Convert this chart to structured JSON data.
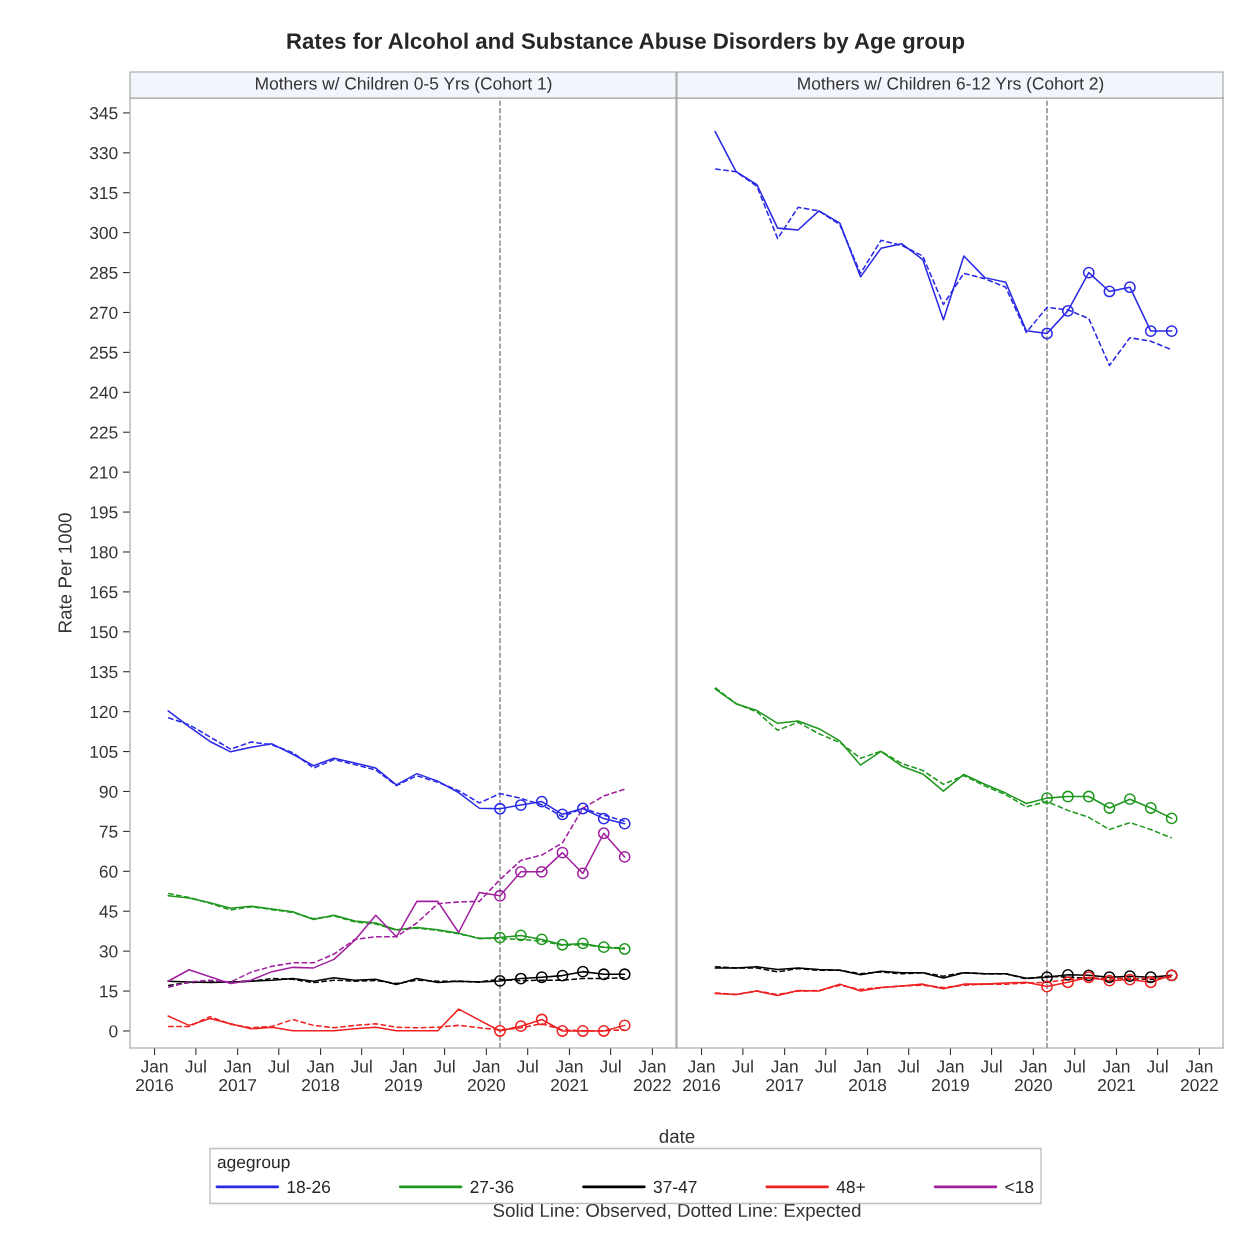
{
  "chart_data": [
    {
      "type": "line",
      "title": "Rates for Alcohol and Substance Abuse Disorders by Age group",
      "subtitle": "Mothers w/ Children 0-5 Yrs (Cohort 1)",
      "xlabel": "date",
      "ylabel": "Rate Per 1000",
      "legend_title": "agegroup",
      "legend": "bottom",
      "annotations": [
        "Solid Line: Observed, Dotted Line: Expected"
      ],
      "x": [
        "2016-03",
        "2016-06",
        "2016-09",
        "2016-12",
        "2017-03",
        "2017-06",
        "2017-09",
        "2017-12",
        "2018-03",
        "2018-06",
        "2018-09",
        "2018-12",
        "2019-03",
        "2019-06",
        "2019-09",
        "2019-12",
        "2020-03",
        "2020-06",
        "2020-09",
        "2020-12",
        "2021-03",
        "2021-06",
        "2021-09"
      ],
      "xlim": [
        "2015-09-15",
        "2022-04-15"
      ],
      "xticks": [
        {
          "value": "2016-01",
          "label": "Jan\n2016"
        },
        {
          "value": "2016-07",
          "label": "Jul"
        },
        {
          "value": "2017-01",
          "label": "Jan\n2017"
        },
        {
          "value": "2017-07",
          "label": "Jul"
        },
        {
          "value": "2018-01",
          "label": "Jan\n2018"
        },
        {
          "value": "2018-07",
          "label": "Jul"
        },
        {
          "value": "2019-01",
          "label": "Jan\n2019"
        },
        {
          "value": "2019-07",
          "label": "Jul"
        },
        {
          "value": "2020-01",
          "label": "Jan\n2020"
        },
        {
          "value": "2020-07",
          "label": "Jul"
        },
        {
          "value": "2021-01",
          "label": "Jan\n2021"
        },
        {
          "value": "2021-07",
          "label": "Jul"
        },
        {
          "value": "2022-01",
          "label": "Jan\n2022"
        }
      ],
      "ylim": [
        -6.4,
        350.6
      ],
      "yticks": [
        0,
        15,
        30,
        45,
        60,
        75,
        90,
        105,
        120,
        135,
        150,
        165,
        180,
        195,
        210,
        225,
        240,
        255,
        270,
        285,
        300,
        315,
        330,
        345
      ],
      "grid": false,
      "ref_lines": [
        {
          "axis": "x",
          "value": "2020-03",
          "color": "#808080",
          "line_style": "dashed"
        }
      ],
      "series": [
        {
          "name": "18-26",
          "color": "#2929e6",
          "line_style": "solid",
          "values": [
            120.3,
            114.4,
            108.8,
            104.9,
            106.6,
            107.9,
            104.0,
            99.7,
            102.5,
            100.7,
            98.8,
            92.5,
            96.7,
            93.9,
            89.6,
            83.7,
            83.5,
            84.9,
            86.2,
            81.4,
            83.6,
            79.8,
            77.9
          ]
        },
        {
          "color": "#2929e6",
          "line_style": "dashed",
          "values": [
            117.7,
            115.1,
            110.5,
            105.9,
            108.6,
            107.5,
            104.6,
            98.8,
            102.0,
            100.1,
            98.1,
            92.2,
            95.9,
            93.5,
            90.3,
            85.7,
            89.2,
            87.4,
            85.0,
            80.5,
            83.7,
            81.1,
            78.8
          ]
        },
        {
          "type": "scatter",
          "color": "#2929e6",
          "marker": "circle",
          "x": [
            "2020-03",
            "2020-06",
            "2020-09",
            "2020-12",
            "2021-03",
            "2021-06",
            "2021-09"
          ],
          "values": [
            83.5,
            84.9,
            86.2,
            81.4,
            83.6,
            79.8,
            77.9
          ]
        },
        {
          "name": "27-36",
          "color": "#1f981f",
          "line_style": "solid",
          "values": [
            50.8,
            50.0,
            48.2,
            46.1,
            46.9,
            45.8,
            44.8,
            41.9,
            43.5,
            41.3,
            40.6,
            38.0,
            38.9,
            38.0,
            36.7,
            34.7,
            35.1,
            35.9,
            34.4,
            32.4,
            32.9,
            31.5,
            30.8
          ]
        },
        {
          "color": "#1f981f",
          "line_style": "dashed",
          "values": [
            51.7,
            50.2,
            48.0,
            45.5,
            46.7,
            45.6,
            44.5,
            42.2,
            43.2,
            41.0,
            40.2,
            37.9,
            38.7,
            37.8,
            36.5,
            34.9,
            34.7,
            34.4,
            33.8,
            32.2,
            32.4,
            31.5,
            31.2
          ]
        },
        {
          "type": "scatter",
          "color": "#1f981f",
          "marker": "circle",
          "x": [
            "2020-03",
            "2020-06",
            "2020-09",
            "2020-12",
            "2021-03",
            "2021-06",
            "2021-09"
          ],
          "values": [
            35.1,
            35.9,
            34.4,
            32.4,
            32.9,
            31.5,
            30.8
          ]
        },
        {
          "name": "37-47",
          "color": "#000000",
          "line_style": "solid",
          "values": [
            18.7,
            18.4,
            18.2,
            18.4,
            18.7,
            19.1,
            19.7,
            18.7,
            20.0,
            19.1,
            19.4,
            17.5,
            19.7,
            18.2,
            18.7,
            18.4,
            18.8,
            19.7,
            20.2,
            20.8,
            22.3,
            21.3,
            21.3
          ]
        },
        {
          "color": "#000000",
          "line_style": "dashed",
          "values": [
            17.1,
            18.2,
            18.4,
            18.4,
            18.7,
            19.7,
            19.4,
            18.2,
            19.1,
            18.7,
            19.0,
            17.8,
            19.1,
            18.7,
            18.7,
            18.4,
            19.4,
            18.9,
            19.1,
            19.1,
            19.7,
            19.7,
            20.0
          ]
        },
        {
          "type": "scatter",
          "color": "#000000",
          "marker": "circle",
          "x": [
            "2020-03",
            "2020-06",
            "2020-09",
            "2020-12",
            "2021-03",
            "2021-06",
            "2021-09"
          ],
          "values": [
            18.8,
            19.7,
            20.2,
            20.8,
            22.3,
            21.3,
            21.3
          ]
        },
        {
          "name": "48+",
          "color": "#ee2020",
          "line_style": "solid",
          "values": [
            5.6,
            2.1,
            4.7,
            2.7,
            0.8,
            1.4,
            0.1,
            0.1,
            0.1,
            0.8,
            1.4,
            0.1,
            0.1,
            0.1,
            8.2,
            4.1,
            0.0,
            1.8,
            4.3,
            0.0,
            0.0,
            0.0,
            2.1
          ]
        },
        {
          "color": "#ee2020",
          "line_style": "dashed",
          "values": [
            1.7,
            1.7,
            5.4,
            2.5,
            1.2,
            1.7,
            4.3,
            2.1,
            1.2,
            2.1,
            2.7,
            1.4,
            1.2,
            1.4,
            2.1,
            1.2,
            0.4,
            1.2,
            2.7,
            0.4,
            0.1,
            0.1,
            0.4
          ]
        },
        {
          "type": "scatter",
          "color": "#ee2020",
          "marker": "circle",
          "x": [
            "2020-03",
            "2020-06",
            "2020-09",
            "2020-12",
            "2021-03",
            "2021-06",
            "2021-09"
          ],
          "values": [
            0.0,
            1.8,
            4.3,
            0.0,
            0.0,
            0.0,
            2.1
          ]
        },
        {
          "name": "<18",
          "color": "#a020a0",
          "line_style": "solid",
          "values": [
            18.7,
            23.0,
            20.4,
            17.8,
            19.1,
            22.3,
            23.9,
            23.7,
            26.9,
            34.1,
            43.5,
            35.4,
            48.7,
            48.7,
            37.0,
            52.0,
            50.8,
            59.8,
            59.8,
            67.0,
            59.2,
            74.3,
            65.4
          ]
        },
        {
          "color": "#a020a0",
          "line_style": "dashed",
          "values": [
            16.4,
            18.4,
            19.1,
            18.4,
            22.1,
            24.3,
            25.6,
            25.6,
            28.9,
            34.4,
            35.4,
            35.4,
            40.6,
            47.8,
            48.5,
            48.7,
            56.9,
            64.1,
            66.1,
            70.7,
            83.7,
            88.3,
            90.9
          ]
        },
        {
          "type": "scatter",
          "color": "#a020a0",
          "marker": "circle",
          "x": [
            "2020-03",
            "2020-06",
            "2020-09",
            "2020-12",
            "2021-03",
            "2021-06",
            "2021-09"
          ],
          "values": [
            50.8,
            59.8,
            59.8,
            67.0,
            59.2,
            74.3,
            65.4
          ]
        }
      ]
    },
    {
      "type": "line",
      "subtitle": "Mothers w/ Children 6-12 Yrs (Cohort 2)",
      "tick_labels": "x",
      "x": [
        "2016-03",
        "2016-06",
        "2016-09",
        "2016-12",
        "2017-03",
        "2017-06",
        "2017-09",
        "2017-12",
        "2018-03",
        "2018-06",
        "2018-09",
        "2018-12",
        "2019-03",
        "2019-06",
        "2019-09",
        "2019-12",
        "2020-03",
        "2020-06",
        "2020-09",
        "2020-12",
        "2021-03",
        "2021-06",
        "2021-09"
      ],
      "xlim": [
        "2015-09-15",
        "2022-04-15"
      ],
      "xticks": [
        {
          "value": "2016-01",
          "label": "Jan\n2016"
        },
        {
          "value": "2016-07",
          "label": "Jul"
        },
        {
          "value": "2017-01",
          "label": "Jan\n2017"
        },
        {
          "value": "2017-07",
          "label": "Jul"
        },
        {
          "value": "2018-01",
          "label": "Jan\n2018"
        },
        {
          "value": "2018-07",
          "label": "Jul"
        },
        {
          "value": "2019-01",
          "label": "Jan\n2019"
        },
        {
          "value": "2019-07",
          "label": "Jul"
        },
        {
          "value": "2020-01",
          "label": "Jan\n2020"
        },
        {
          "value": "2020-07",
          "label": "Jul"
        },
        {
          "value": "2021-01",
          "label": "Jan\n2021"
        },
        {
          "value": "2021-07",
          "label": "Jul"
        },
        {
          "value": "2022-01",
          "label": "Jan\n2022"
        }
      ],
      "ylim": [
        -6.4,
        350.6
      ],
      "yticks": [
        0,
        15,
        30,
        45,
        60,
        75,
        90,
        105,
        120,
        135,
        150,
        165,
        180,
        195,
        210,
        225,
        240,
        255,
        270,
        285,
        300,
        315,
        330,
        345
      ],
      "grid": false,
      "ref_lines": [
        {
          "axis": "x",
          "value": "2020-03",
          "color": "#808080",
          "line_style": "dashed"
        }
      ],
      "series": [
        {
          "color": "#2929e6",
          "line_style": "solid",
          "values": [
            338.0,
            322.9,
            318.0,
            301.7,
            301.0,
            308.2,
            303.6,
            283.4,
            294.1,
            295.8,
            289.9,
            267.3,
            291.2,
            283.1,
            281.4,
            263.1,
            262.1,
            270.6,
            285.0,
            277.9,
            279.5,
            263.0,
            263.0
          ]
        },
        {
          "color": "#2929e6",
          "line_style": "dashed",
          "values": [
            323.9,
            322.9,
            317.4,
            297.8,
            309.5,
            308.2,
            303.0,
            284.7,
            297.1,
            295.2,
            291.2,
            273.0,
            284.7,
            282.7,
            279.5,
            262.5,
            271.9,
            271.0,
            267.7,
            250.1,
            260.5,
            259.2,
            256.0
          ]
        },
        {
          "type": "scatter",
          "color": "#2929e6",
          "marker": "circle",
          "x": [
            "2020-03",
            "2020-06",
            "2020-09",
            "2020-12",
            "2021-03",
            "2021-06",
            "2021-09"
          ],
          "values": [
            262.1,
            270.6,
            285.0,
            277.9,
            279.5,
            263.0,
            263.0
          ]
        },
        {
          "color": "#1f981f",
          "line_style": "solid",
          "values": [
            128.6,
            123.0,
            120.4,
            115.6,
            116.5,
            113.6,
            109.0,
            99.9,
            105.1,
            99.5,
            96.6,
            90.1,
            96.4,
            92.7,
            89.4,
            85.5,
            87.5,
            88.1,
            88.1,
            83.8,
            87.1,
            83.8,
            79.9
          ]
        },
        {
          "color": "#1f981f",
          "line_style": "dashed",
          "values": [
            129.0,
            123.0,
            119.9,
            113.0,
            116.0,
            111.7,
            108.4,
            102.5,
            105.1,
            100.5,
            97.9,
            92.7,
            96.0,
            92.1,
            88.8,
            84.2,
            86.2,
            82.9,
            80.3,
            75.7,
            78.3,
            75.7,
            72.5
          ]
        },
        {
          "type": "scatter",
          "color": "#1f981f",
          "marker": "circle",
          "x": [
            "2020-03",
            "2020-06",
            "2020-09",
            "2020-12",
            "2021-03",
            "2021-06",
            "2021-09"
          ],
          "values": [
            87.5,
            88.1,
            88.1,
            83.8,
            87.1,
            83.8,
            79.9
          ]
        },
        {
          "color": "#000000",
          "line_style": "solid",
          "values": [
            23.7,
            23.7,
            24.1,
            23.1,
            23.7,
            23.1,
            22.8,
            21.1,
            22.4,
            21.9,
            21.9,
            19.9,
            21.9,
            21.5,
            21.5,
            19.8,
            20.2,
            21.1,
            20.9,
            20.2,
            20.6,
            20.2,
            20.9
          ]
        },
        {
          "color": "#000000",
          "line_style": "dashed",
          "values": [
            24.1,
            23.7,
            23.7,
            22.2,
            23.5,
            22.8,
            22.8,
            21.5,
            22.2,
            21.5,
            21.9,
            20.6,
            21.9,
            21.5,
            21.5,
            19.6,
            20.6,
            20.2,
            19.8,
            19.6,
            19.8,
            19.3,
            20.6
          ]
        },
        {
          "type": "scatter",
          "color": "#000000",
          "marker": "circle",
          "x": [
            "2020-03",
            "2020-06",
            "2020-09",
            "2020-12",
            "2021-03",
            "2021-06",
            "2021-09"
          ],
          "values": [
            20.2,
            21.1,
            20.9,
            20.2,
            20.6,
            20.2,
            20.9
          ]
        },
        {
          "color": "#ee2020",
          "line_style": "solid",
          "values": [
            14.1,
            13.7,
            15.0,
            13.3,
            15.2,
            15.0,
            17.6,
            15.0,
            16.3,
            16.9,
            17.6,
            15.9,
            17.6,
            17.6,
            18.0,
            18.3,
            16.7,
            18.3,
            20.2,
            18.9,
            19.3,
            18.3,
            20.9
          ]
        },
        {
          "color": "#ee2020",
          "line_style": "dashed",
          "values": [
            14.3,
            13.7,
            15.0,
            13.7,
            15.0,
            15.2,
            17.2,
            15.6,
            16.3,
            16.9,
            17.2,
            16.3,
            17.2,
            17.6,
            17.6,
            18.0,
            18.3,
            19.3,
            19.8,
            19.8,
            19.6,
            19.8,
            20.2
          ]
        },
        {
          "type": "scatter",
          "color": "#ee2020",
          "marker": "circle",
          "x": [
            "2020-03",
            "2020-06",
            "2020-09",
            "2020-12",
            "2021-03",
            "2021-06",
            "2021-09"
          ],
          "values": [
            16.7,
            18.3,
            20.2,
            18.9,
            19.3,
            18.3,
            20.9
          ]
        }
      ]
    }
  ]
}
